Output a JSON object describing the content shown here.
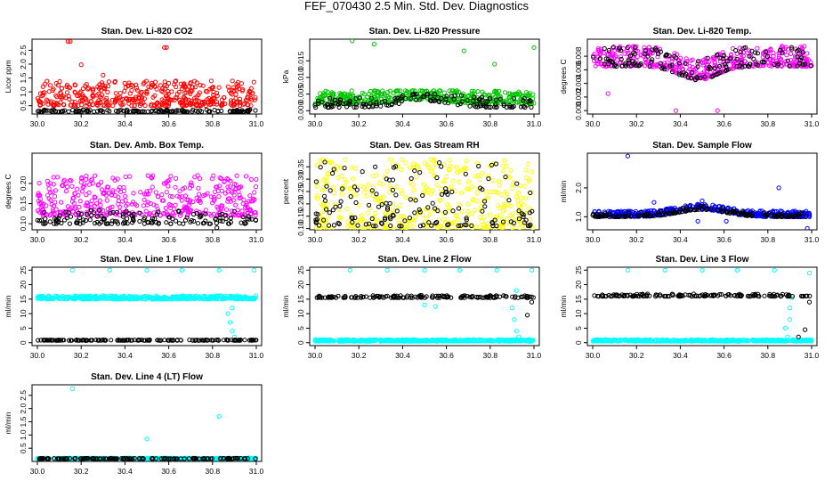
{
  "page": {
    "title": "FEF_070430  2.5 Min. Std. Dev. Diagnostics"
  },
  "chart_data": [
    {
      "type": "scatter",
      "title": "Stan. Dev. Li-820 CO2",
      "ylabel": "Licor ppm",
      "xlim": [
        30.0,
        31.0
      ],
      "ylim": [
        0.2,
        2.9
      ],
      "xticks": [
        "30.0",
        "30.2",
        "30.4",
        "30.6",
        "30.8",
        "31.0"
      ],
      "yticks": [
        "0.5",
        "1.0",
        "1.5",
        "2.0",
        "2.5"
      ],
      "series": [
        {
          "color": "#ff0000",
          "base": 0.5,
          "spread": 0.9,
          "min": 0.25,
          "max": 1.4,
          "outliers": [
            [
              30.14,
              2.82
            ],
            [
              30.15,
              2.82
            ],
            [
              30.58,
              2.6
            ],
            [
              30.59,
              2.6
            ],
            [
              30.2,
              1.98
            ],
            [
              30.3,
              1.6
            ],
            [
              30.45,
              1.25
            ]
          ]
        },
        {
          "color": "#000000",
          "base": 0.28,
          "spread": 0.08,
          "min": 0.22,
          "max": 0.4,
          "outliers": []
        }
      ]
    },
    {
      "type": "scatter",
      "title": "Stan. Dev. Li-820 Pressure",
      "ylabel": "kPa",
      "xlim": [
        30.0,
        31.0
      ],
      "ylim": [
        -0.001,
        0.0215
      ],
      "xticks": [
        "30.0",
        "30.2",
        "30.4",
        "30.6",
        "30.8",
        "31.0"
      ],
      "yticks": [
        "0.000",
        "0.005",
        "0.010",
        "0.015"
      ],
      "series": [
        {
          "color": "#00c800",
          "base": 0.002,
          "spread": 0.004,
          "min": 0.0,
          "max": 0.006,
          "hump": 0.0015,
          "outliers": [
            [
              30.17,
              0.021
            ],
            [
              30.27,
              0.02
            ],
            [
              30.68,
              0.018
            ],
            [
              30.82,
              0.014
            ],
            [
              31.0,
              0.019
            ]
          ]
        },
        {
          "color": "#000000",
          "base": 0.001,
          "spread": 0.003,
          "min": 0.0,
          "max": 0.005,
          "hump": 0.002,
          "outliers": []
        }
      ]
    },
    {
      "type": "scatter",
      "title": "Stan. Dev. Li-820 Temp.",
      "ylabel": "degrees C",
      "xlim": [
        30.0,
        31.0
      ],
      "ylim": [
        -0.0005,
        0.0105
      ],
      "xticks": [
        "30.0",
        "30.2",
        "30.4",
        "30.6",
        "30.8",
        "31.0"
      ],
      "yticks": [
        "0.000",
        "0.002",
        "0.004",
        "0.006",
        "0.008"
      ],
      "series": [
        {
          "color": "#ff00ff",
          "base": 0.0065,
          "spread": 0.003,
          "min": 0.0,
          "max": 0.0102,
          "dip": 0.002,
          "outliers": [
            [
              30.38,
              0.0
            ],
            [
              30.57,
              0.0
            ],
            [
              30.07,
              0.0025
            ]
          ]
        },
        {
          "color": "#000000",
          "base": 0.0065,
          "spread": 0.003,
          "min": 0.001,
          "max": 0.01,
          "dip": 0.002,
          "outliers": []
        }
      ]
    },
    {
      "type": "scatter",
      "title": "Stan. Dev. Amb. Box Temp.",
      "ylabel": "degrees C",
      "xlim": [
        30.0,
        31.0
      ],
      "ylim": [
        0.085,
        0.275
      ],
      "xticks": [
        "30.0",
        "30.2",
        "30.4",
        "30.6",
        "30.8",
        "31.0"
      ],
      "yticks": [
        "0.10",
        "0.15",
        "0.20"
      ],
      "series": [
        {
          "color": "#ff00ff",
          "base": 0.12,
          "spread": 0.1,
          "min": 0.09,
          "max": 0.27,
          "outliers": []
        },
        {
          "color": "#000000",
          "base": 0.1,
          "spread": 0.035,
          "min": 0.09,
          "max": 0.15,
          "outliers": [
            [
              30.82,
              0.09
            ]
          ]
        }
      ]
    },
    {
      "type": "scatter",
      "title": "Stan. Dev. Gas Stream RH",
      "ylabel": "percent",
      "xlim": [
        30.0,
        31.0
      ],
      "ylim": [
        0.095,
        0.405
      ],
      "xticks": [
        "30.0",
        "30.2",
        "30.4",
        "30.6",
        "30.8",
        "31.0"
      ],
      "yticks": [
        "0.10",
        "0.15",
        "0.20",
        "0.25",
        "0.30",
        "0.35"
      ],
      "series": [
        {
          "color": "#ffff00",
          "base": 0.1,
          "spread": 0.28,
          "min": 0.1,
          "max": 0.4,
          "outliers": []
        },
        {
          "color": "#000000",
          "base": 0.11,
          "spread": 0.26,
          "min": 0.1,
          "max": 0.38,
          "outliers": []
        }
      ]
    },
    {
      "type": "scatter",
      "title": "Stan. Dev. Sample Flow",
      "ylabel": "ml/min",
      "xlim": [
        30.0,
        31.0
      ],
      "ylim": [
        0.55,
        3.2
      ],
      "xticks": [
        "30.0",
        "30.2",
        "30.4",
        "30.6",
        "30.8",
        "31.0"
      ],
      "yticks": [
        "1.0",
        "2.0"
      ],
      "series": [
        {
          "color": "#0000ff",
          "base": 1.0,
          "spread": 0.2,
          "min": 0.7,
          "max": 1.5,
          "hump": 0.25,
          "outliers": [
            [
              30.16,
              3.1
            ],
            [
              30.85,
              2.0
            ],
            [
              30.48,
              0.85
            ],
            [
              30.61,
              0.85
            ],
            [
              30.98,
              0.6
            ],
            [
              30.28,
              1.5
            ],
            [
              30.5,
              1.55
            ]
          ]
        },
        {
          "color": "#000000",
          "base": 1.0,
          "spread": 0.15,
          "min": 0.85,
          "max": 1.4,
          "hump": 0.25,
          "outliers": []
        }
      ]
    },
    {
      "type": "scatter",
      "title": "Stan. Dev. Line 1 Flow",
      "ylabel": "ml/min",
      "xlim": [
        30.0,
        31.0
      ],
      "ylim": [
        -1.0,
        26.0
      ],
      "xticks": [
        "30.0",
        "30.2",
        "30.4",
        "30.6",
        "30.8",
        "31.0"
      ],
      "yticks": [
        "0",
        "5",
        "10",
        "15",
        "20",
        "25"
      ],
      "series": [
        {
          "color": "#00ffff",
          "base": 15.0,
          "spread": 1.2,
          "min": 14.0,
          "max": 18.0,
          "outliers": [
            [
              30.16,
              25.0
            ],
            [
              30.33,
              25.0
            ],
            [
              30.5,
              25.0
            ],
            [
              30.66,
              25.0
            ],
            [
              30.83,
              25.0
            ],
            [
              30.99,
              25.0
            ],
            [
              30.87,
              10.0
            ],
            [
              30.88,
              7.0
            ],
            [
              30.89,
              4.0
            ],
            [
              30.9,
              2.0
            ],
            [
              30.91,
              1.0
            ],
            [
              30.89,
              12.0
            ]
          ]
        },
        {
          "color": "#000000",
          "base": 0.8,
          "spread": 0.2,
          "min": 0.6,
          "max": 1.2,
          "outliers": []
        }
      ]
    },
    {
      "type": "scatter",
      "title": "Stan. Dev. Line 2 Flow",
      "ylabel": "ml/min",
      "xlim": [
        30.0,
        31.0
      ],
      "ylim": [
        -1.0,
        26.0
      ],
      "xticks": [
        "30.0",
        "30.2",
        "30.4",
        "30.6",
        "30.8",
        "31.0"
      ],
      "yticks": [
        "0",
        "5",
        "10",
        "15",
        "20",
        "25"
      ],
      "series": [
        {
          "color": "#00ffff",
          "base": 0.5,
          "spread": 0.6,
          "min": 0.0,
          "max": 1.5,
          "outliers": [
            [
              30.16,
              25.0
            ],
            [
              30.33,
              25.0
            ],
            [
              30.5,
              25.0
            ],
            [
              30.66,
              25.0
            ],
            [
              30.83,
              25.0
            ],
            [
              30.99,
              25.0
            ],
            [
              30.9,
              12.0
            ],
            [
              30.91,
              8.0
            ],
            [
              30.92,
              4.0
            ],
            [
              30.93,
              2.0
            ],
            [
              30.5,
              13.0
            ],
            [
              30.55,
              12.5
            ],
            [
              30.92,
              18.0
            ]
          ]
        },
        {
          "color": "#000000",
          "base": 15.5,
          "spread": 0.8,
          "min": 14.5,
          "max": 16.5,
          "outliers": [
            [
              30.97,
              9.5
            ],
            [
              30.99,
              14.0
            ]
          ]
        }
      ]
    },
    {
      "type": "scatter",
      "title": "Stan. Dev. Line 3 Flow",
      "ylabel": "ml/min",
      "xlim": [
        30.0,
        31.0
      ],
      "ylim": [
        -1.0,
        26.0
      ],
      "xticks": [
        "30.0",
        "30.2",
        "30.4",
        "30.6",
        "30.8",
        "31.0"
      ],
      "yticks": [
        "0",
        "5",
        "10",
        "15",
        "20",
        "25"
      ],
      "series": [
        {
          "color": "#00ffff",
          "base": 0.5,
          "spread": 0.6,
          "min": 0.0,
          "max": 1.5,
          "outliers": [
            [
              30.16,
              25.0
            ],
            [
              30.33,
              25.0
            ],
            [
              30.5,
              25.0
            ],
            [
              30.66,
              25.0
            ],
            [
              30.83,
              25.0
            ],
            [
              30.99,
              24.0
            ],
            [
              30.88,
              5.0
            ],
            [
              30.89,
              2.0
            ],
            [
              30.9,
              8.0
            ],
            [
              30.9,
              12.0
            ],
            [
              30.91,
              15.5
            ]
          ]
        },
        {
          "color": "#000000",
          "base": 16.0,
          "spread": 0.8,
          "min": 15.0,
          "max": 17.5,
          "outliers": [
            [
              30.94,
              2.0
            ],
            [
              30.97,
              4.5
            ],
            [
              30.99,
              14.0
            ]
          ]
        }
      ]
    },
    {
      "type": "scatter",
      "title": "Stan. Dev. Line 4 (LT) Flow",
      "ylabel": "ml/min",
      "xlim": [
        30.0,
        31.0
      ],
      "ylim": [
        0.0,
        2.9
      ],
      "xticks": [
        "30.0",
        "30.2",
        "30.4",
        "30.6",
        "30.8",
        "31.0"
      ],
      "yticks": [
        "0.5",
        "1.0",
        "1.5",
        "2.0",
        "2.5"
      ],
      "series": [
        {
          "color": "#00ffff",
          "base": 0.1,
          "spread": 0.03,
          "min": 0.07,
          "max": 0.15,
          "outliers": [
            [
              30.16,
              2.75
            ],
            [
              30.5,
              0.85
            ],
            [
              30.83,
              1.7
            ]
          ]
        },
        {
          "color": "#000000",
          "base": 0.1,
          "spread": 0.02,
          "min": 0.08,
          "max": 0.12,
          "outliers": []
        }
      ]
    }
  ]
}
